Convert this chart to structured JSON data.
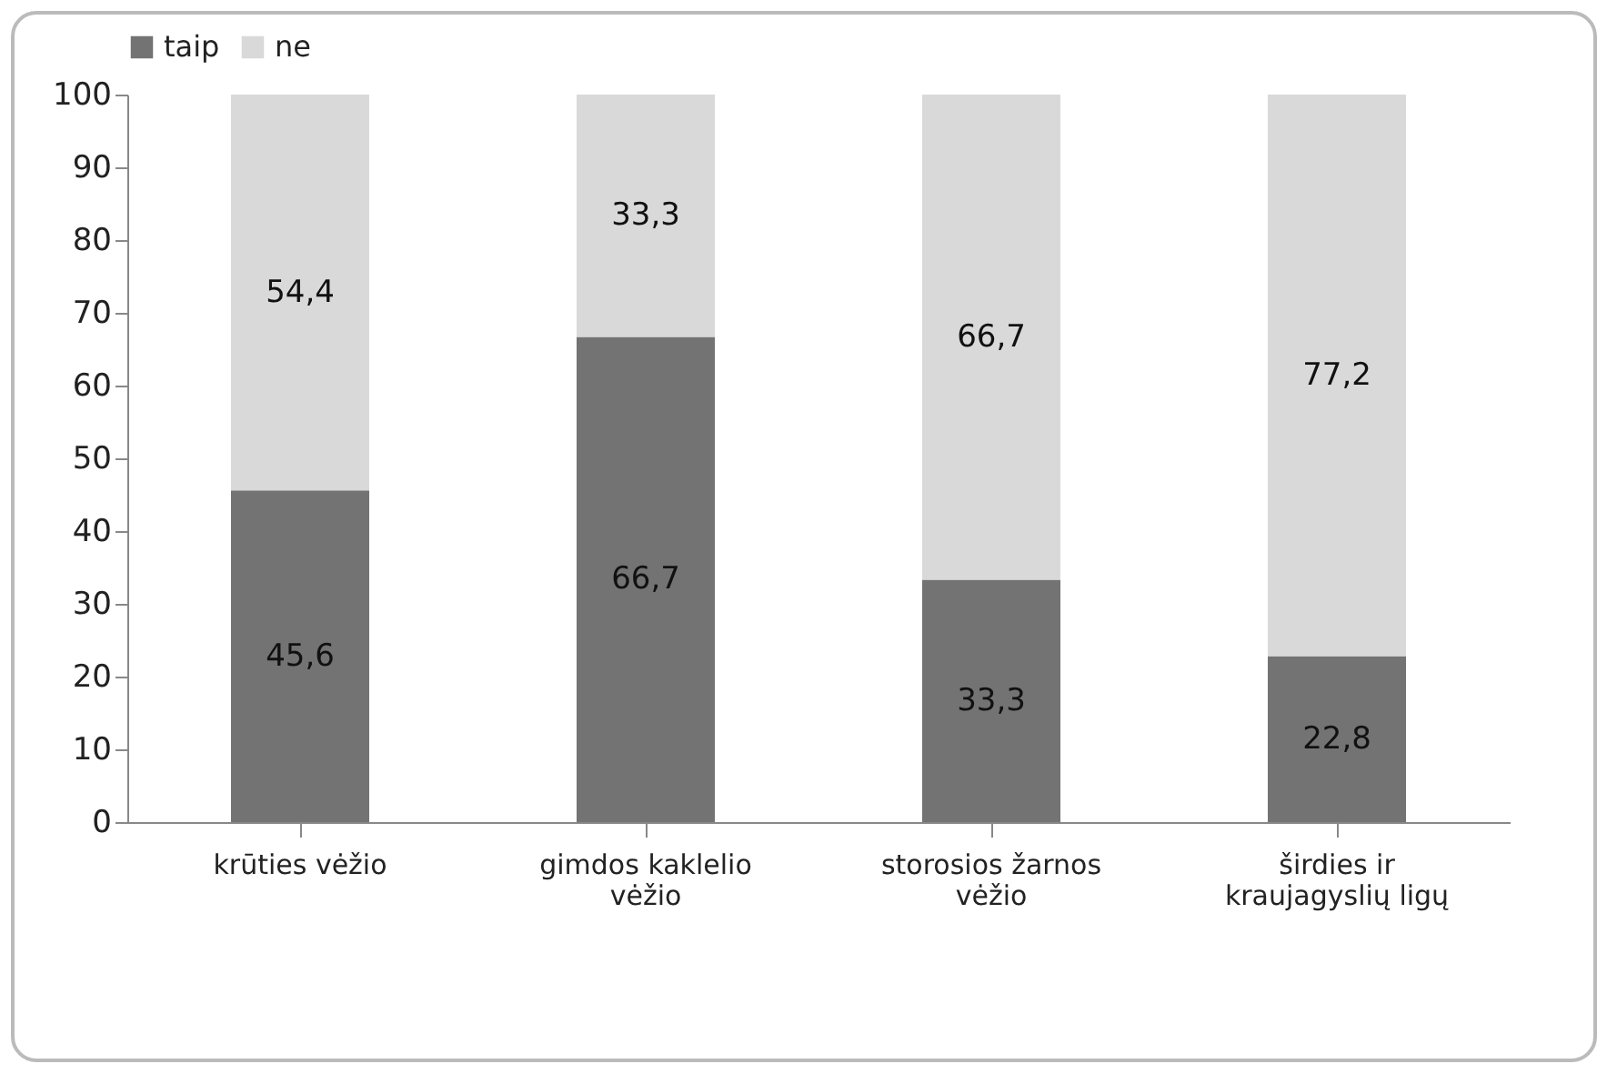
{
  "chart_data": {
    "type": "bar",
    "stacked": true,
    "categories": [
      "krūties vėžio",
      "gimdos kaklelio vėžio",
      "storosios žarnos vėžio",
      "širdies ir kraujagyslių ligų"
    ],
    "series": [
      {
        "name": "taip",
        "color": "#737373",
        "values": [
          45.6,
          66.7,
          33.3,
          22.8
        ],
        "value_labels": [
          "45,6",
          "66,7",
          "33,3",
          "22,8"
        ]
      },
      {
        "name": "ne",
        "color": "#d9d9d9",
        "values": [
          54.4,
          33.3,
          66.7,
          77.2
        ],
        "value_labels": [
          "54,4",
          "33,3",
          "66,7",
          "77,2"
        ]
      }
    ],
    "ylim": [
      0,
      100
    ],
    "yticks": [
      0,
      10,
      20,
      30,
      40,
      50,
      60,
      70,
      80,
      90,
      100
    ],
    "grid": false,
    "legend": "top"
  }
}
